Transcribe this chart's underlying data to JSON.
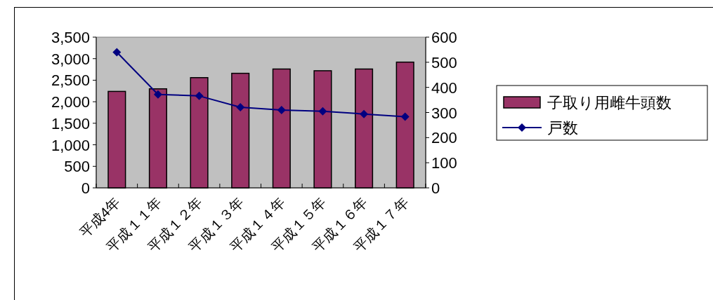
{
  "chart_data": {
    "type": "bar",
    "categories": [
      "平成4年",
      "平成１１年",
      "平成１２年",
      "平成１３年",
      "平成１４年",
      "平成１５年",
      "平成１６年",
      "平成１７年"
    ],
    "series": [
      {
        "name": "子取り用雌牛頭数",
        "color": "#993366",
        "values": [
          2240,
          2300,
          2560,
          2660,
          2760,
          2720,
          2760,
          2920
        ]
      },
      {
        "name": "戸数",
        "type": "line",
        "axis": "y2",
        "color": "#000080",
        "marker": "diamond",
        "values": [
          540,
          372,
          366,
          321,
          310,
          305,
          294,
          283
        ]
      }
    ],
    "ylim": [
      0,
      3500
    ],
    "yticks": [
      0,
      {
        "value": 500,
        "label": "500"
      },
      {
        "value": 1000,
        "label": "1,000"
      },
      {
        "value": 1500,
        "label": "1,500"
      },
      {
        "value": 2000,
        "label": "2,000"
      },
      {
        "value": 2500,
        "label": "2,500"
      },
      {
        "value": 3000,
        "label": "3,000"
      },
      {
        "value": 3500,
        "label": "3,500"
      }
    ],
    "y2lim": [
      0,
      600
    ],
    "y2ticks": [
      0,
      100,
      200,
      300,
      400,
      500,
      600
    ],
    "legend": "right"
  }
}
